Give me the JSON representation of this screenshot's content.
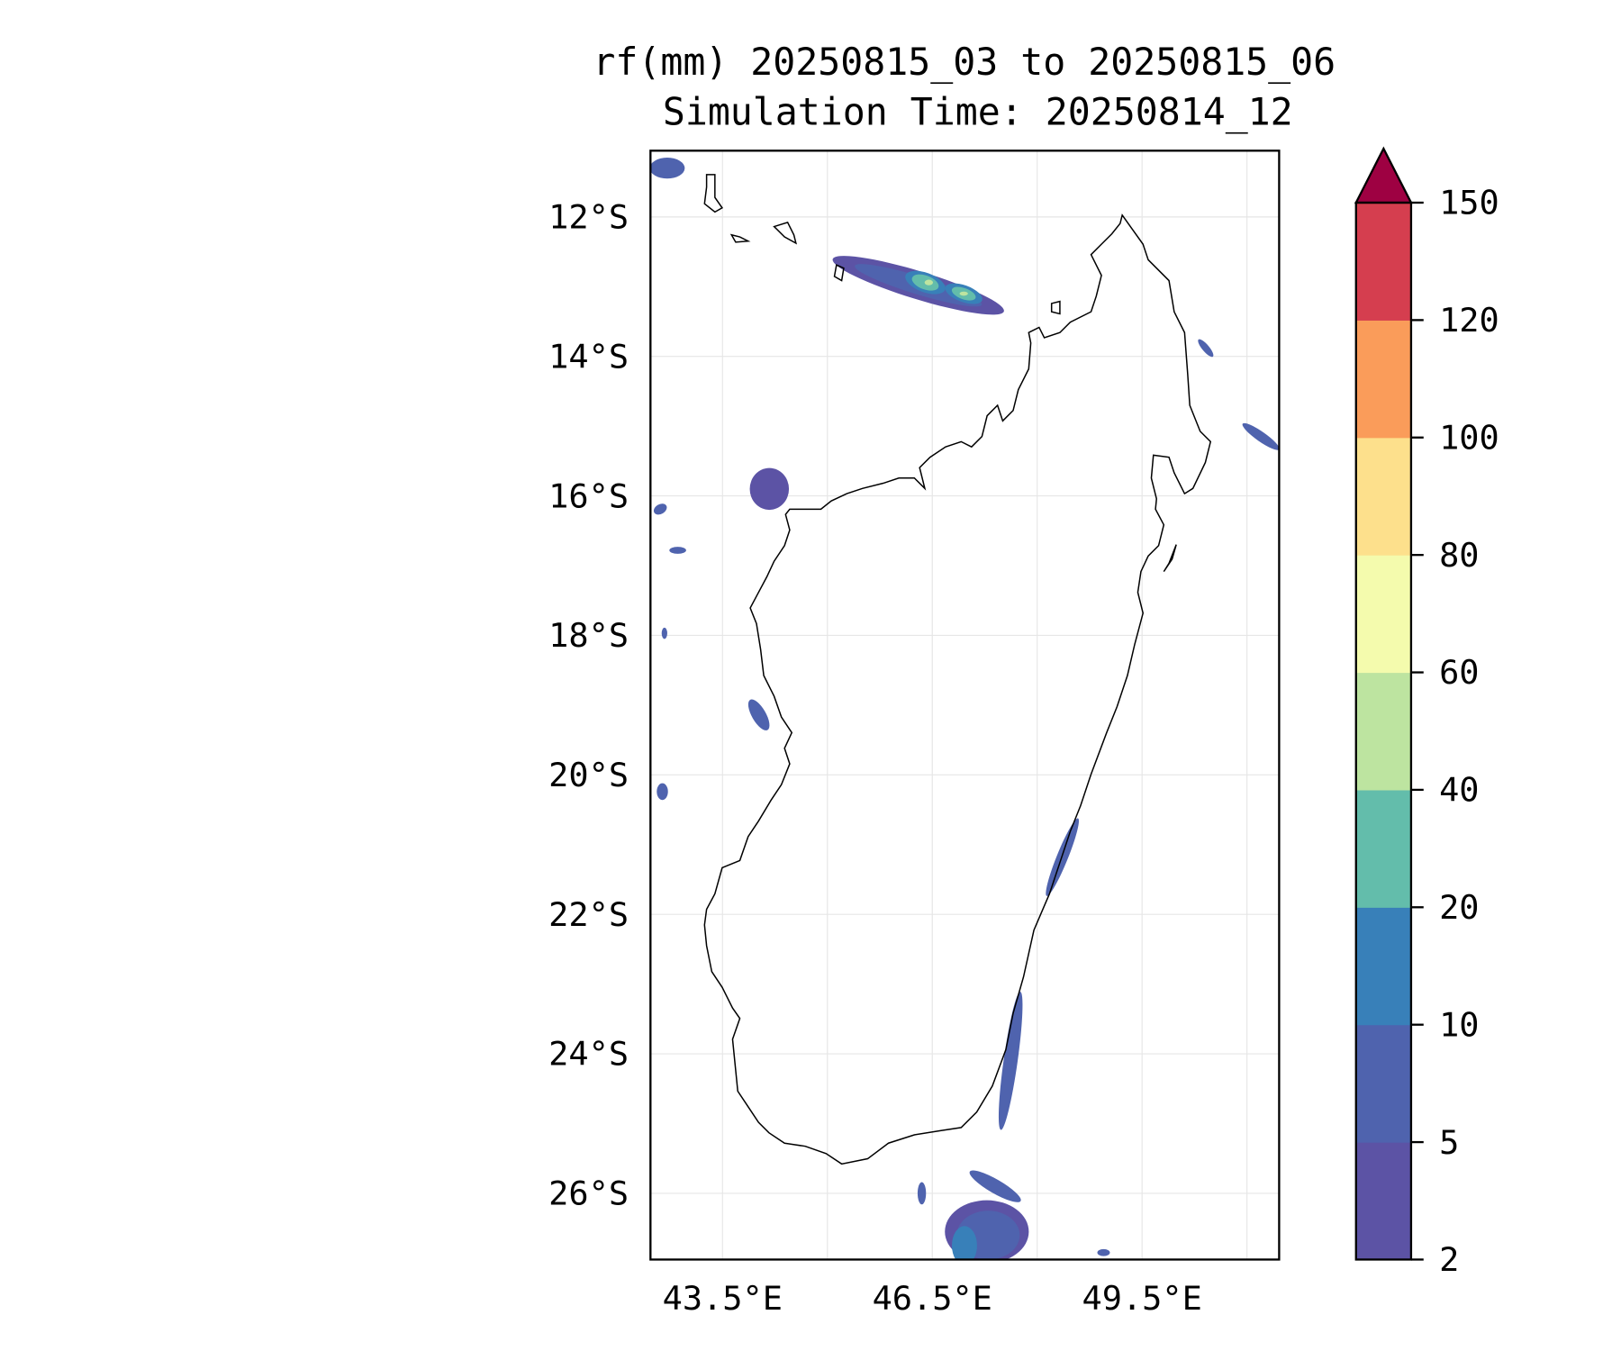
{
  "chart_data": {
    "type": "heatmap",
    "title": "rf(mm) 20250815_03 to 20250815_06",
    "subtitle": "Simulation Time: 20250814_12",
    "variable": "rf(mm)",
    "xlim": [
      42.47,
      51.46
    ],
    "ylim_lat_south": [
      11.05,
      26.95
    ],
    "x_ticks": [
      {
        "value": 43.5,
        "label": "43.5°E"
      },
      {
        "value": 46.5,
        "label": "46.5°E"
      },
      {
        "value": 49.5,
        "label": "49.5°E"
      }
    ],
    "x_grid": [
      43.5,
      45,
      46.5,
      48,
      49.5,
      51
    ],
    "y_ticks": [
      {
        "value": 12,
        "label": "12°S"
      },
      {
        "value": 14,
        "label": "14°S"
      },
      {
        "value": 16,
        "label": "16°S"
      },
      {
        "value": 18,
        "label": "18°S"
      },
      {
        "value": 20,
        "label": "20°S"
      },
      {
        "value": 22,
        "label": "22°S"
      },
      {
        "value": 24,
        "label": "24°S"
      },
      {
        "value": 26,
        "label": "26°S"
      }
    ],
    "grid": true,
    "colorbar": {
      "levels": [
        "2",
        "5",
        "10",
        "20",
        "40",
        "60",
        "80",
        "100",
        "120",
        "150"
      ],
      "colors": [
        "#5c53a5",
        "#4f63ae",
        "#3880b9",
        "#63bdab",
        "#bde4a0",
        "#f4fbad",
        "#fde08c",
        "#fa9c5a",
        "#d53e4f"
      ],
      "extend_max_color": "#9e0142",
      "placement": "right"
    },
    "rain_areas": [
      {
        "lon": 46.3,
        "lat": 12.98,
        "rx": 1.28,
        "ry": 0.2,
        "rot": 17,
        "level": 0
      },
      {
        "lon": 46.3,
        "lat": 12.98,
        "rx": 0.95,
        "ry": 0.13,
        "rot": 17,
        "level": 1
      },
      {
        "lon": 46.4,
        "lat": 12.94,
        "rx": 0.3,
        "ry": 0.14,
        "rot": 20,
        "level": 2
      },
      {
        "lon": 46.95,
        "lat": 13.1,
        "rx": 0.28,
        "ry": 0.12,
        "rot": 20,
        "level": 2
      },
      {
        "lon": 46.4,
        "lat": 12.94,
        "rx": 0.2,
        "ry": 0.1,
        "rot": 20,
        "level": 3
      },
      {
        "lon": 46.95,
        "lat": 13.1,
        "rx": 0.18,
        "ry": 0.08,
        "rot": 20,
        "level": 3
      },
      {
        "lon": 46.45,
        "lat": 12.94,
        "rx": 0.06,
        "ry": 0.04,
        "rot": 0,
        "level": 4
      },
      {
        "lon": 46.95,
        "lat": 13.1,
        "rx": 0.06,
        "ry": 0.03,
        "rot": 0,
        "level": 4
      },
      {
        "lon": 44.17,
        "lat": 15.9,
        "rx": 0.28,
        "ry": 0.3,
        "rot": 0,
        "level": 0
      },
      {
        "lon": 51.2,
        "lat": 15.15,
        "rx": 0.32,
        "ry": 0.07,
        "rot": 35,
        "level": 1
      },
      {
        "lon": 50.41,
        "lat": 13.88,
        "rx": 0.16,
        "ry": 0.05,
        "rot": 50,
        "level": 1
      },
      {
        "lon": 48.36,
        "lat": 21.18,
        "rx": 0.08,
        "ry": 0.6,
        "rot": 22,
        "level": 1
      },
      {
        "lon": 47.62,
        "lat": 24.1,
        "rx": 0.1,
        "ry": 1.0,
        "rot": 8,
        "level": 1
      },
      {
        "lon": 47.28,
        "lat": 26.55,
        "rx": 0.6,
        "ry": 0.45,
        "rot": 0,
        "level": 0
      },
      {
        "lon": 47.3,
        "lat": 26.6,
        "rx": 0.45,
        "ry": 0.35,
        "rot": 0,
        "level": 1
      },
      {
        "lon": 46.96,
        "lat": 26.75,
        "rx": 0.18,
        "ry": 0.28,
        "rot": 0,
        "level": 2
      },
      {
        "lon": 47.4,
        "lat": 25.9,
        "rx": 0.42,
        "ry": 0.1,
        "rot": 30,
        "level": 1
      },
      {
        "lon": 46.35,
        "lat": 26.0,
        "rx": 0.06,
        "ry": 0.16,
        "rot": 0,
        "level": 1
      },
      {
        "lon": 44.02,
        "lat": 19.14,
        "rx": 0.1,
        "ry": 0.25,
        "rot": -30,
        "level": 1
      },
      {
        "lon": 42.71,
        "lat": 11.3,
        "rx": 0.25,
        "ry": 0.15,
        "rot": 0,
        "level": 1
      },
      {
        "lon": 42.61,
        "lat": 16.19,
        "rx": 0.1,
        "ry": 0.07,
        "rot": -30,
        "level": 1
      },
      {
        "lon": 42.86,
        "lat": 16.78,
        "rx": 0.12,
        "ry": 0.05,
        "rot": 0,
        "level": 1
      },
      {
        "lon": 42.64,
        "lat": 20.24,
        "rx": 0.08,
        "ry": 0.12,
        "rot": 0,
        "level": 1
      },
      {
        "lon": 48.95,
        "lat": 26.85,
        "rx": 0.09,
        "ry": 0.05,
        "rot": 0,
        "level": 1
      },
      {
        "lon": 42.67,
        "lat": 17.97,
        "rx": 0.04,
        "ry": 0.08,
        "rot": 0,
        "level": 1
      }
    ]
  }
}
